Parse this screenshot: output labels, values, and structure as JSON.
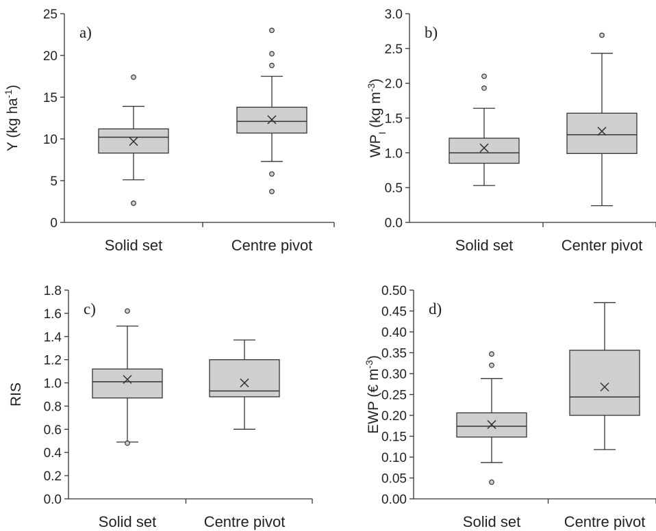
{
  "colors": {
    "box_fill": "#cfcfcf",
    "stroke": "#333333",
    "text": "#222222",
    "background": "#ffffff"
  },
  "chart_data": [
    {
      "panel": "a)",
      "type": "box",
      "ylabel": "Y (kg ha-1)",
      "ylabel_parts": {
        "main": "Y (kg ha",
        "sup": "-1",
        "tail": ")"
      },
      "ylim": [
        0,
        25
      ],
      "yticks": [
        "0",
        "5",
        "10",
        "15",
        "20",
        "25"
      ],
      "ytick_values": [
        0,
        5,
        10,
        15,
        20,
        25
      ],
      "categories": [
        "Solid set",
        "Centre pivot"
      ],
      "boxes": [
        {
          "whisker_low": 5.1,
          "q1": 8.3,
          "median": 10.2,
          "q3": 11.2,
          "whisker_high": 13.9,
          "mean": 9.7,
          "outliers": [
            17.4,
            2.3
          ]
        },
        {
          "whisker_low": 7.3,
          "q1": 10.7,
          "median": 12.1,
          "q3": 13.8,
          "whisker_high": 17.5,
          "mean": 12.3,
          "outliers": [
            23.0,
            20.2,
            18.8,
            5.8,
            3.7
          ]
        }
      ]
    },
    {
      "panel": "b)",
      "type": "box",
      "ylabel": "WPI (kg m-3)",
      "ylabel_parts": {
        "main": "WP",
        "sub": "I",
        "mid": " (kg m",
        "sup": "-3",
        "tail": ")"
      },
      "ylim": [
        0,
        3
      ],
      "yticks": [
        "0.0",
        "0.5",
        "1.0",
        "1.5",
        "2.0",
        "2.5",
        "3.0"
      ],
      "ytick_values": [
        0,
        0.5,
        1,
        1.5,
        2,
        2.5,
        3
      ],
      "categories": [
        "Solid set",
        "Center pivot"
      ],
      "boxes": [
        {
          "whisker_low": 0.53,
          "q1": 0.85,
          "median": 1.0,
          "q3": 1.21,
          "whisker_high": 1.64,
          "mean": 1.07,
          "outliers": [
            2.1,
            1.93
          ]
        },
        {
          "whisker_low": 0.24,
          "q1": 0.99,
          "median": 1.26,
          "q3": 1.57,
          "whisker_high": 2.43,
          "mean": 1.31,
          "outliers": [
            2.69
          ]
        }
      ]
    },
    {
      "panel": "c)",
      "type": "box",
      "ylabel": "RIS",
      "ylabel_parts": {
        "main": "RIS"
      },
      "ylim": [
        0,
        1.8
      ],
      "yticks": [
        "0.0",
        "0.2",
        "0.4",
        "0.6",
        "0.8",
        "1.0",
        "1.2",
        "1.4",
        "1.6",
        "1.8"
      ],
      "ytick_values": [
        0,
        0.2,
        0.4,
        0.6,
        0.8,
        1.0,
        1.2,
        1.4,
        1.6,
        1.8
      ],
      "categories": [
        "Solid set",
        "Centre pivot"
      ],
      "boxes": [
        {
          "whisker_low": 0.49,
          "q1": 0.87,
          "median": 1.01,
          "q3": 1.12,
          "whisker_high": 1.49,
          "mean": 1.03,
          "outliers": [
            1.62,
            0.48
          ]
        },
        {
          "whisker_low": 0.6,
          "q1": 0.88,
          "median": 0.93,
          "q3": 1.2,
          "whisker_high": 1.37,
          "mean": 1.0,
          "outliers": []
        }
      ]
    },
    {
      "panel": "d)",
      "type": "box",
      "ylabel": "EWP (€ m-3)",
      "ylabel_parts": {
        "main": "EWP (€ m",
        "sup": "-3",
        "tail": ")"
      },
      "ylim": [
        0,
        0.5
      ],
      "yticks": [
        "0.00",
        "0.05",
        "0.10",
        "0.15",
        "0.20",
        "0.25",
        "0.30",
        "0.35",
        "0.40",
        "0.45",
        "0.50"
      ],
      "ytick_values": [
        0,
        0.05,
        0.1,
        0.15,
        0.2,
        0.25,
        0.3,
        0.35,
        0.4,
        0.45,
        0.5
      ],
      "categories": [
        "Solid set",
        "Centre pivot"
      ],
      "boxes": [
        {
          "whisker_low": 0.087,
          "q1": 0.148,
          "median": 0.174,
          "q3": 0.206,
          "whisker_high": 0.288,
          "mean": 0.178,
          "outliers": [
            0.347,
            0.32,
            0.04
          ]
        },
        {
          "whisker_low": 0.118,
          "q1": 0.2,
          "median": 0.244,
          "q3": 0.356,
          "whisker_high": 0.47,
          "mean": 0.268,
          "outliers": []
        }
      ]
    }
  ]
}
